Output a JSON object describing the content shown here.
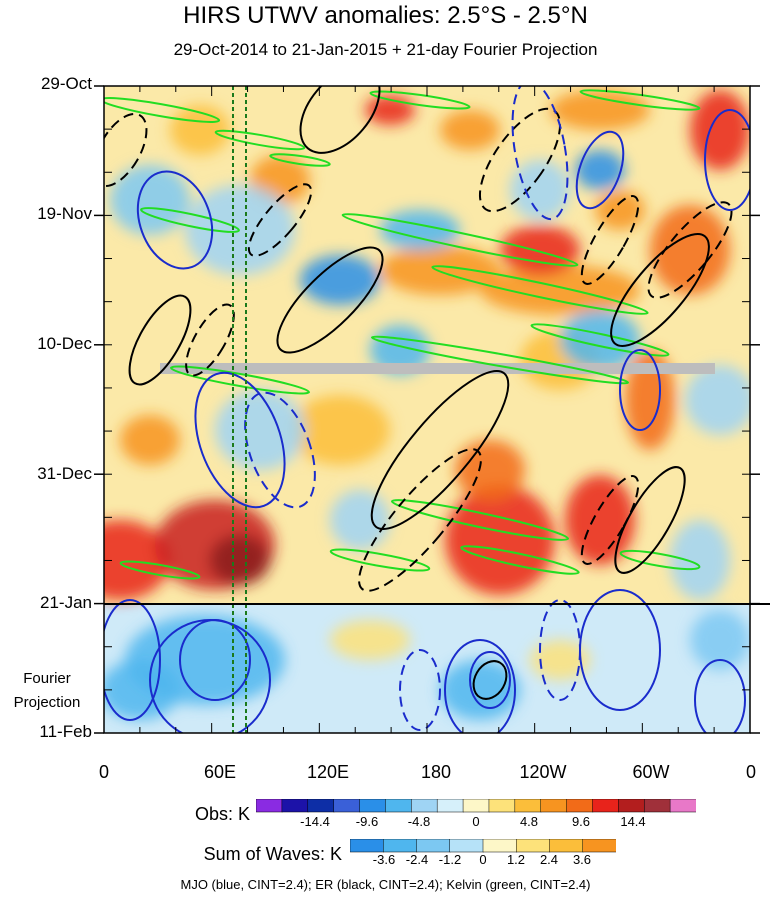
{
  "title": "HIRS UTWV anomalies: 2.5°S - 2.5°N",
  "subtitle": "29-Oct-2014 to 21-Jan-2015 + 21-day Fourier Projection",
  "y_axis": {
    "tick_labels": [
      "29-Oct",
      "19-Nov",
      "10-Dec",
      "31-Dec",
      "21-Jan",
      "11-Feb"
    ],
    "projection_label_line1": "Fourier",
    "projection_label_line2": "Projection"
  },
  "x_axis": {
    "tick_labels": [
      "0",
      "60E",
      "120E",
      "180",
      "120W",
      "60W",
      "0"
    ]
  },
  "obs_colorbar": {
    "label": "Obs: K",
    "tick_labels": [
      "-14.4",
      "-9.6",
      "-4.8",
      "0",
      "4.8",
      "9.6",
      "14.4"
    ],
    "colors": [
      "#8a2be2",
      "#1c12a8",
      "#0d2ea6",
      "#3a60d8",
      "#2a8fe8",
      "#4fb6ee",
      "#9fd4f4",
      "#d6f0fa",
      "#fdf7c8",
      "#fde27a",
      "#fbbe3a",
      "#f79420",
      "#f26b18",
      "#e8231b",
      "#b31e1e",
      "#a0303a",
      "#e878c8"
    ]
  },
  "waves_colorbar": {
    "label": "Sum of Waves: K",
    "tick_labels": [
      "-3.6",
      "-2.4",
      "-1.2",
      "0",
      "1.2",
      "2.4",
      "3.6"
    ],
    "colors": [
      "#2a8fe8",
      "#4fb6ee",
      "#7cc8f2",
      "#b6e2f8",
      "#fdf7c8",
      "#fde27a",
      "#fbbe3a",
      "#f79420"
    ]
  },
  "footer": "MJO (blue, CINT=2.4); ER (black, CINT=2.4); Kelvin (green, CINT=2.4)",
  "chart_data": {
    "type": "heatmap",
    "title": "HIRS UTWV anomalies: 2.5°S - 2.5°N",
    "subtitle": "29-Oct-2014 to 21-Jan-2015 + 21-day Fourier Projection",
    "x_range_deg_lon": [
      0,
      360
    ],
    "x_ticks": [
      "0",
      "60E",
      "120E",
      "180",
      "120W",
      "60W",
      "0"
    ],
    "y_ticks": [
      "29-Oct",
      "19-Nov",
      "10-Dec",
      "31-Dec",
      "21-Jan",
      "11-Feb"
    ],
    "observation_end": "21-Jan",
    "projection_end": "11-Feb",
    "reference_lines_lon": [
      72,
      80
    ],
    "missing_data_band_date": "~14-Dec",
    "units": "K",
    "overlays": [
      {
        "name": "MJO",
        "color": "blue",
        "cint": 2.4
      },
      {
        "name": "ER",
        "color": "black",
        "cint": 2.4
      },
      {
        "name": "Kelvin",
        "color": "green",
        "cint": 2.4
      }
    ]
  }
}
